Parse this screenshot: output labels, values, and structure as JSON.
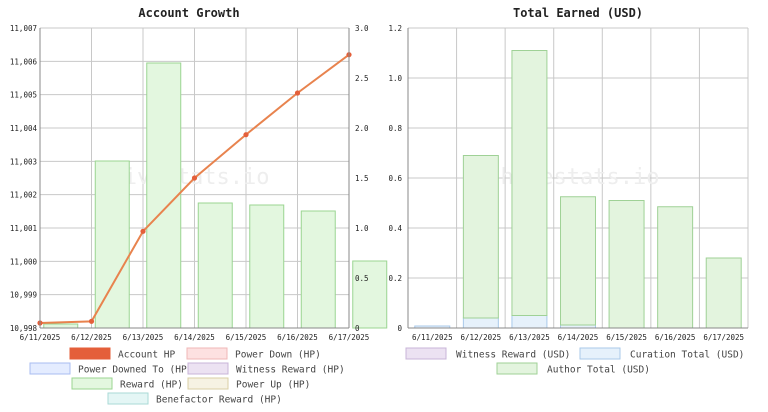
{
  "charts": [
    {
      "id": "growth",
      "type": "bar+line",
      "title": "Account Growth",
      "watermark": "hivestats.io",
      "x": [
        "6/11/2025",
        "6/12/2025",
        "6/13/2025",
        "6/14/2025",
        "6/15/2025",
        "6/16/2025",
        "6/17/2025"
      ],
      "y_left": {
        "min": 10998,
        "max": 11007,
        "ticks": [
          "10,998",
          "10,999",
          "11,000",
          "11,001",
          "11,002",
          "11,003",
          "11,004",
          "11,005",
          "11,006",
          "11,007"
        ]
      },
      "y_right": {
        "min": 0,
        "max": 3.0,
        "ticks": [
          "0",
          "0.5",
          "1.0",
          "1.5",
          "2.0",
          "2.5",
          "3.0"
        ]
      },
      "line_series": {
        "name": "Account HP",
        "color": "#e8834e",
        "axis": "left",
        "values": [
          10998.15,
          10998.2,
          11000.9,
          11002.5,
          11003.8,
          11005.05,
          11006.2
        ]
      },
      "bar_series": {
        "name": "Reward (HP)",
        "color": "#e3f7df",
        "stroke": "#9bd592",
        "axis": "right",
        "values": [
          0.04,
          1.67,
          2.65,
          1.25,
          1.23,
          1.17,
          0.67
        ]
      },
      "legend": [
        {
          "label": "Account HP",
          "fill": "#e45f3a",
          "stroke": "#e45f3a"
        },
        {
          "label": "Power Down (HP)",
          "fill": "#fde1e1",
          "stroke": "#f0b7b7"
        },
        {
          "label": "Power Downed To (HP)",
          "fill": "#e4ecff",
          "stroke": "#a9bdf0"
        },
        {
          "label": "Witness Reward (HP)",
          "fill": "#ece2f2",
          "stroke": "#c8b4d8"
        },
        {
          "label": "Reward (HP)",
          "fill": "#e3f7df",
          "stroke": "#9bd592"
        },
        {
          "label": "Power Up (HP)",
          "fill": "#f6f2e3",
          "stroke": "#d9cfa5"
        },
        {
          "label": "Benefactor Reward (HP)",
          "fill": "#e4f6f5",
          "stroke": "#aadad6"
        }
      ]
    },
    {
      "id": "earned",
      "type": "stacked-bar",
      "title": "Total Earned (USD)",
      "watermark": "hivestats.io",
      "x": [
        "6/11/2025",
        "6/12/2025",
        "6/13/2025",
        "6/14/2025",
        "6/15/2025",
        "6/16/2025",
        "6/17/2025"
      ],
      "y": {
        "min": 0,
        "max": 1.2,
        "ticks": [
          "0",
          "0.2",
          "0.4",
          "0.6",
          "0.8",
          "1.0",
          "1.2"
        ]
      },
      "series": [
        {
          "name": "Curation Total (USD)",
          "color": "#e6f1fb",
          "stroke": "#a9c9ea",
          "values": [
            0.008,
            0.04,
            0.05,
            0.012,
            0,
            0,
            0
          ]
        },
        {
          "name": "Author Total (USD)",
          "color": "#e3f4de",
          "stroke": "#9fd196",
          "values": [
            0,
            0.65,
            1.06,
            0.513,
            0.51,
            0.485,
            0.28
          ]
        }
      ],
      "legend": [
        {
          "label": "Witness Reward (USD)",
          "fill": "#ece2f2",
          "stroke": "#c8b4d8"
        },
        {
          "label": "Curation Total (USD)",
          "fill": "#e6f1fb",
          "stroke": "#a9c9ea"
        },
        {
          "label": "Author Total (USD)",
          "fill": "#e3f4de",
          "stroke": "#9fd196"
        }
      ]
    }
  ]
}
